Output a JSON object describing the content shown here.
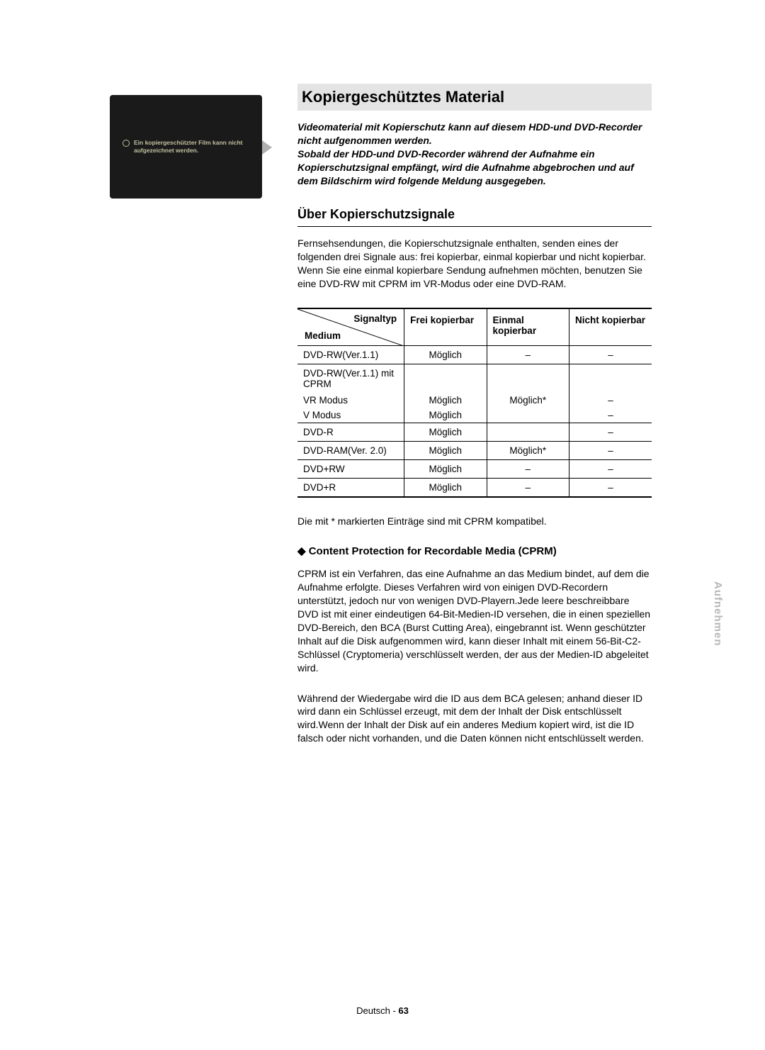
{
  "tv_overlay": {
    "text": "Ein kopiergeschützter Film kann nicht aufgezeichnet werden."
  },
  "section_title": "Kopiergeschütztes Material",
  "intro_text": "Videomaterial mit Kopierschutz kann auf diesem HDD-und DVD-Recorder nicht aufgenommen werden.\nSobald der HDD-und DVD-Recorder während der Aufnahme ein Kopierschutzsignal empfängt, wird die Aufnahme abgebrochen und auf dem Bildschirm wird folgende Meldung ausgegeben.",
  "sub_title": "Über Kopierschutzsignale",
  "body1": "Fernsehsendungen, die Kopierschutzsignale enthalten, senden eines der folgenden drei Signale aus: frei kopierbar, einmal kopierbar und nicht kopierbar. Wenn Sie eine einmal kopierbare Sendung aufnehmen möchten, benutzen Sie eine DVD-RW mit CPRM im VR-Modus oder eine DVD-RAM.",
  "table": {
    "header_diag_top": "Signaltyp",
    "header_diag_bottom": "Medium",
    "columns": [
      "Frei kopierbar",
      "Einmal kopierbar",
      "Nicht kopierbar"
    ],
    "groups": [
      {
        "rows": [
          {
            "medium": "DVD-RW(Ver.1.1)",
            "c1": "Möglich",
            "c2": "–",
            "c3": "–"
          }
        ]
      },
      {
        "rows": [
          {
            "medium": "DVD-RW(Ver.1.1) mit CPRM",
            "c1": "",
            "c2": "",
            "c3": ""
          },
          {
            "medium": "VR Modus",
            "c1": "Möglich",
            "c2": "Möglich*",
            "c3": "–"
          },
          {
            "medium": "V Modus",
            "c1": "Möglich",
            "c2": "",
            "c3": "–"
          }
        ]
      },
      {
        "rows": [
          {
            "medium": "DVD-R",
            "c1": "Möglich",
            "c2": "",
            "c3": "–"
          }
        ]
      },
      {
        "rows": [
          {
            "medium": "DVD-RAM(Ver. 2.0)",
            "c1": "Möglich",
            "c2": "Möglich*",
            "c3": "–"
          }
        ]
      },
      {
        "rows": [
          {
            "medium": "DVD+RW",
            "c1": "Möglich",
            "c2": "–",
            "c3": "–"
          }
        ]
      },
      {
        "rows": [
          {
            "medium": "DVD+R",
            "c1": "Möglich",
            "c2": "–",
            "c3": "–"
          }
        ]
      }
    ]
  },
  "footnote": "Die mit * markierten Einträge sind mit CPRM kompatibel.",
  "cprm_heading": "◆ Content Protection for Recordable Media (CPRM)",
  "cprm_p1": "CPRM ist ein Verfahren, das eine Aufnahme an das Medium bindet, auf dem die Aufnahme erfolgte. Dieses Verfahren wird von einigen DVD-Recordern unterstützt, jedoch nur von wenigen DVD-Playern.Jede leere beschreibbare DVD ist mit einer eindeutigen 64-Bit-Medien-ID versehen, die in einen speziellen DVD-Bereich, den BCA (Burst Cutting Area), eingebrannt ist. Wenn geschützter Inhalt auf die Disk aufgenommen wird, kann dieser Inhalt mit einem 56-Bit-C2-Schlüssel (Cryptomeria) verschlüsselt werden, der aus der Medien-ID abgeleitet wird.",
  "cprm_p2": "Während der Wiedergabe wird die ID aus dem BCA gelesen; anhand dieser ID wird dann ein Schlüssel erzeugt, mit dem der Inhalt der Disk entschlüsselt wird.Wenn der Inhalt der Disk auf ein anderes Medium kopiert wird, ist die ID falsch oder nicht vorhanden, und die Daten können nicht entschlüsselt werden.",
  "side_tab": "Aufnehmen",
  "footer_lang": "Deutsch - ",
  "footer_page": "63",
  "colors": {
    "section_bg": "#e4e4e4",
    "side_tab": "#b8b8b8"
  }
}
